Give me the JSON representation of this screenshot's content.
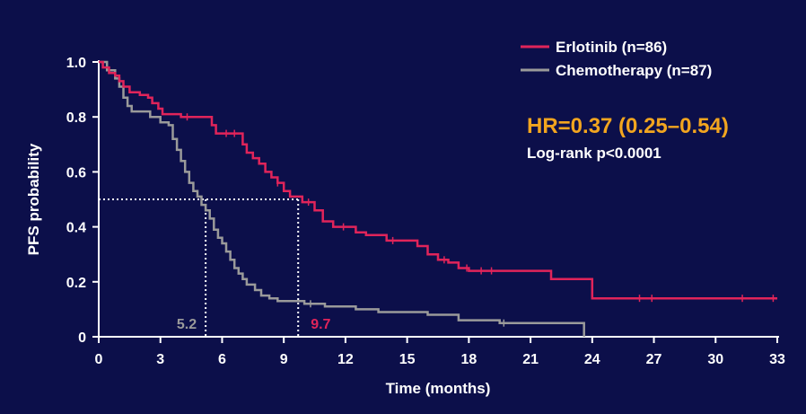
{
  "colors": {
    "background": "#0c0f4a",
    "erlotinib": "#e0245a",
    "chemotherapy": "#9a9a9a",
    "hr": "#f2a51f",
    "axis": "#ffffff"
  },
  "chart_data": {
    "type": "line",
    "step": true,
    "xlabel": "Time (months)",
    "ylabel": "PFS probability",
    "xlim": [
      0,
      33
    ],
    "ylim": [
      0,
      1.0
    ],
    "xticks": [
      0,
      3,
      6,
      9,
      12,
      15,
      18,
      21,
      24,
      27,
      30,
      33
    ],
    "yticks": [
      0,
      0.2,
      0.4,
      0.6,
      0.8,
      1.0
    ],
    "ytick_labels": [
      "0",
      "0.2",
      "0.4",
      "0.6",
      "0.8",
      "1.0"
    ],
    "grid": false,
    "legend_position": "top-right",
    "series": [
      {
        "name": "Erlotinib (n=86)",
        "color": "#e0245a",
        "x": [
          0,
          0.2,
          0.5,
          0.8,
          1.0,
          1.2,
          1.5,
          2.0,
          2.4,
          2.6,
          2.9,
          3.1,
          3.5,
          4.0,
          5.0,
          5.5,
          5.7,
          6.0,
          7.0,
          7.2,
          7.5,
          7.8,
          8.1,
          8.4,
          8.7,
          9.0,
          9.3,
          9.9,
          10.5,
          10.9,
          11.4,
          12.5,
          13.0,
          14.0,
          15.5,
          16.0,
          16.5,
          17.0,
          17.5,
          18.0,
          22.0,
          24.0,
          33.0
        ],
        "y": [
          1.0,
          0.98,
          0.96,
          0.95,
          0.93,
          0.91,
          0.89,
          0.88,
          0.87,
          0.85,
          0.83,
          0.81,
          0.81,
          0.8,
          0.8,
          0.77,
          0.74,
          0.74,
          0.7,
          0.67,
          0.65,
          0.63,
          0.6,
          0.58,
          0.56,
          0.53,
          0.51,
          0.49,
          0.46,
          0.42,
          0.4,
          0.38,
          0.37,
          0.35,
          0.33,
          0.3,
          0.28,
          0.27,
          0.25,
          0.24,
          0.21,
          0.14,
          0.14
        ],
        "censor_x": [
          4.3,
          6.2,
          6.6,
          8.7,
          10.2,
          11.9,
          14.3,
          16.8,
          17.9,
          18.6,
          19.1,
          26.3,
          26.9,
          31.3,
          32.8
        ],
        "median": 9.7,
        "median_label": "9.7"
      },
      {
        "name": "Chemotherapy (n=87)",
        "color": "#9a9a9a",
        "x": [
          0,
          0.4,
          0.8,
          1.0,
          1.2,
          1.4,
          1.6,
          2.5,
          3.0,
          3.4,
          3.6,
          3.8,
          4.0,
          4.2,
          4.4,
          4.6,
          4.8,
          5.0,
          5.2,
          5.4,
          5.6,
          5.8,
          6.0,
          6.2,
          6.4,
          6.6,
          6.8,
          7.0,
          7.2,
          7.6,
          7.9,
          8.3,
          8.7,
          9.0,
          9.5,
          10.0,
          11.0,
          12.5,
          13.6,
          16.0,
          17.5,
          19.5,
          20.0,
          21.0,
          23.6
        ],
        "y": [
          1.0,
          0.97,
          0.94,
          0.91,
          0.87,
          0.84,
          0.82,
          0.8,
          0.78,
          0.77,
          0.72,
          0.68,
          0.64,
          0.6,
          0.56,
          0.53,
          0.51,
          0.48,
          0.46,
          0.43,
          0.39,
          0.36,
          0.34,
          0.31,
          0.28,
          0.25,
          0.23,
          0.21,
          0.19,
          0.17,
          0.15,
          0.14,
          0.13,
          0.13,
          0.13,
          0.12,
          0.11,
          0.1,
          0.09,
          0.08,
          0.06,
          0.05,
          0.05,
          0.05,
          0.0
        ],
        "censor_x": [
          10.3,
          19.7
        ],
        "median": 5.2,
        "median_label": "5.2"
      }
    ],
    "median_reference_y": 0.5,
    "annotations": {
      "hr": "HR=0.37 (0.25–0.54)",
      "logrank": "Log-rank p<0.0001"
    }
  }
}
